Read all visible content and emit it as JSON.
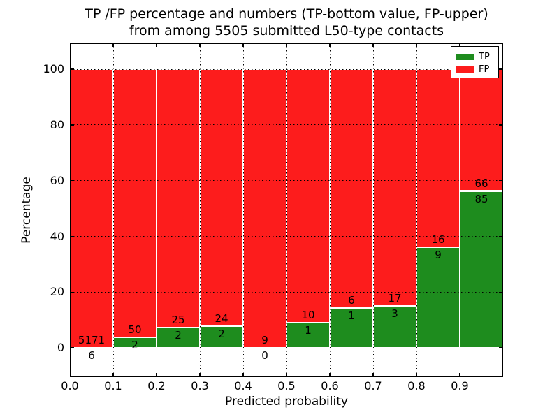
{
  "title_line1": "TP /FP percentage and numbers (TP-bottom value, FP-upper)",
  "title_line2": "from among 5505 submitted L50-type contacts",
  "legend": {
    "items": [
      {
        "label": "TP",
        "color": "#1e8c1e"
      },
      {
        "label": "FP",
        "color": "#fd1c1c"
      }
    ]
  },
  "chart_data": {
    "type": "bar",
    "stacked": true,
    "normalized": "percent",
    "title": "TP /FP percentage and numbers (TP-bottom value, FP-upper) from among 5505 submitted L50-type contacts",
    "xlabel": "Predicted probability",
    "ylabel": "Percentage",
    "total_submitted": 5505,
    "bin_start": [
      0.0,
      0.1,
      0.2,
      0.3,
      0.4,
      0.5,
      0.6,
      0.7,
      0.8,
      0.9
    ],
    "bin_width": 0.1,
    "series": [
      {
        "name": "TP",
        "color": "#1e8c1e",
        "counts": [
          6,
          2,
          2,
          2,
          0,
          1,
          1,
          3,
          9,
          85
        ],
        "percent": [
          0.12,
          3.85,
          7.41,
          7.69,
          0.0,
          9.09,
          14.29,
          15.0,
          36.0,
          56.29
        ]
      },
      {
        "name": "FP",
        "color": "#fd1c1c",
        "counts": [
          5171,
          50,
          25,
          24,
          9,
          10,
          6,
          17,
          16,
          66
        ],
        "percent": [
          99.88,
          96.15,
          92.59,
          92.31,
          100.0,
          90.91,
          85.71,
          85.0,
          64.0,
          43.71
        ]
      }
    ],
    "xlim": [
      0.0,
      1.0
    ],
    "ylim": [
      -10.5,
      109.3
    ],
    "x_ticks": [
      0.1,
      0.2,
      0.3,
      0.4,
      0.5,
      0.6,
      0.7,
      0.8,
      0.9
    ],
    "x_tick_labels": [
      "0.0",
      "0.1",
      "0.2",
      "0.3",
      "0.4",
      "0.5",
      "0.6",
      "0.7",
      "0.8",
      "0.9"
    ],
    "x_tick_label_positions": [
      0.0,
      0.1,
      0.2,
      0.3,
      0.4,
      0.5,
      0.6,
      0.7,
      0.8,
      0.9
    ],
    "y_ticks": [
      0,
      20,
      40,
      60,
      80,
      100
    ],
    "y_tick_labels": [
      "0",
      "20",
      "40",
      "60",
      "80",
      "100"
    ],
    "grid": "dotted",
    "legend_position": "upper right"
  }
}
